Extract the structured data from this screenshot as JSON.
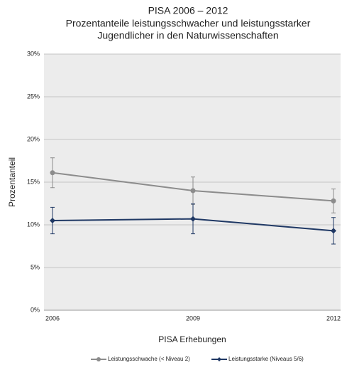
{
  "chart_data": {
    "type": "line",
    "title": [
      "PISA 2006 – 2012",
      "Prozentanteile leistungsschwacher und leistungsstarker",
      "Jugendlicher in den Naturwissenschaften"
    ],
    "xlabel": "PISA Erhebungen",
    "ylabel": "Prozentanteil",
    "categories": [
      "2006",
      "2009",
      "2012"
    ],
    "series": [
      {
        "name": "Leistungsschwache (< Niveau 2)",
        "color": "#8c8c8c",
        "marker": "circle",
        "values": [
          16.1,
          14.0,
          12.8
        ],
        "errors": [
          1.75,
          1.6,
          1.4
        ]
      },
      {
        "name": "Leistungsstarke (Niveaus 5/6)",
        "color": "#1f3864",
        "marker": "diamond",
        "values": [
          10.5,
          10.7,
          9.3
        ],
        "errors": [
          1.55,
          1.75,
          1.55
        ]
      }
    ],
    "ylim": [
      0,
      30
    ],
    "yticks": [
      {
        "value": 0,
        "label": "0%"
      },
      {
        "value": 5,
        "label": "5%"
      },
      {
        "value": 10,
        "label": "10%"
      },
      {
        "value": 15,
        "label": "15%"
      },
      {
        "value": 20,
        "label": "20%"
      },
      {
        "value": 25,
        "label": "25%"
      },
      {
        "value": 30,
        "label": "30%"
      }
    ],
    "grid": true,
    "legend": "bottom"
  }
}
